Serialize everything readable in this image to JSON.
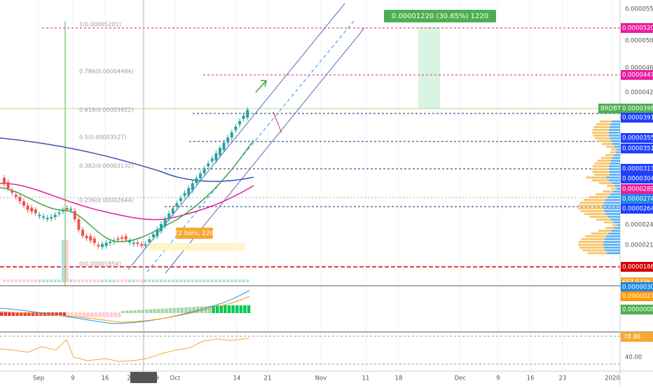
{
  "price_axis": {
    "ticks": [
      "0.00005500",
      "0.00005000",
      "0.00004600",
      "0.00004200",
      "0.00002400",
      "0.00002150"
    ],
    "rsi_tick": "40.00"
  },
  "price_tags": [
    {
      "symbol": "BRDBTC",
      "value": "0.00003987"
    },
    "0.00005201",
    "0.00004473",
    "0.00003914",
    "0.00003555",
    "0.00003518",
    "0.00003133",
    "0.00003041",
    "0.00002896",
    "0.00002745",
    "0.00002644",
    "0.00001862"
  ],
  "volume_tag": "657.533K",
  "macd_tags": [
    "0.00000304",
    "0.00000279",
    "0.00000085"
  ],
  "rsi_tag": "78.86",
  "time_axis": [
    "Sep",
    "9",
    "16",
    "24 Sep '19",
    "Oct",
    "14",
    "21",
    "Nov",
    "11",
    "18",
    "Dec",
    "9",
    "16",
    "23",
    "2020"
  ],
  "fib_levels": [
    "1(0.00005201)",
    "0.786(0.00004484)",
    "0.618(0.00003922)",
    "0.5(0.00003527)",
    "0.382(0.00003132)",
    "0.236(0.00002644)",
    "0(0.00001854)"
  ],
  "annotations": {
    "target": "0.00001220 (30.65%) 1220",
    "range": "22 bars, 22d"
  }
}
